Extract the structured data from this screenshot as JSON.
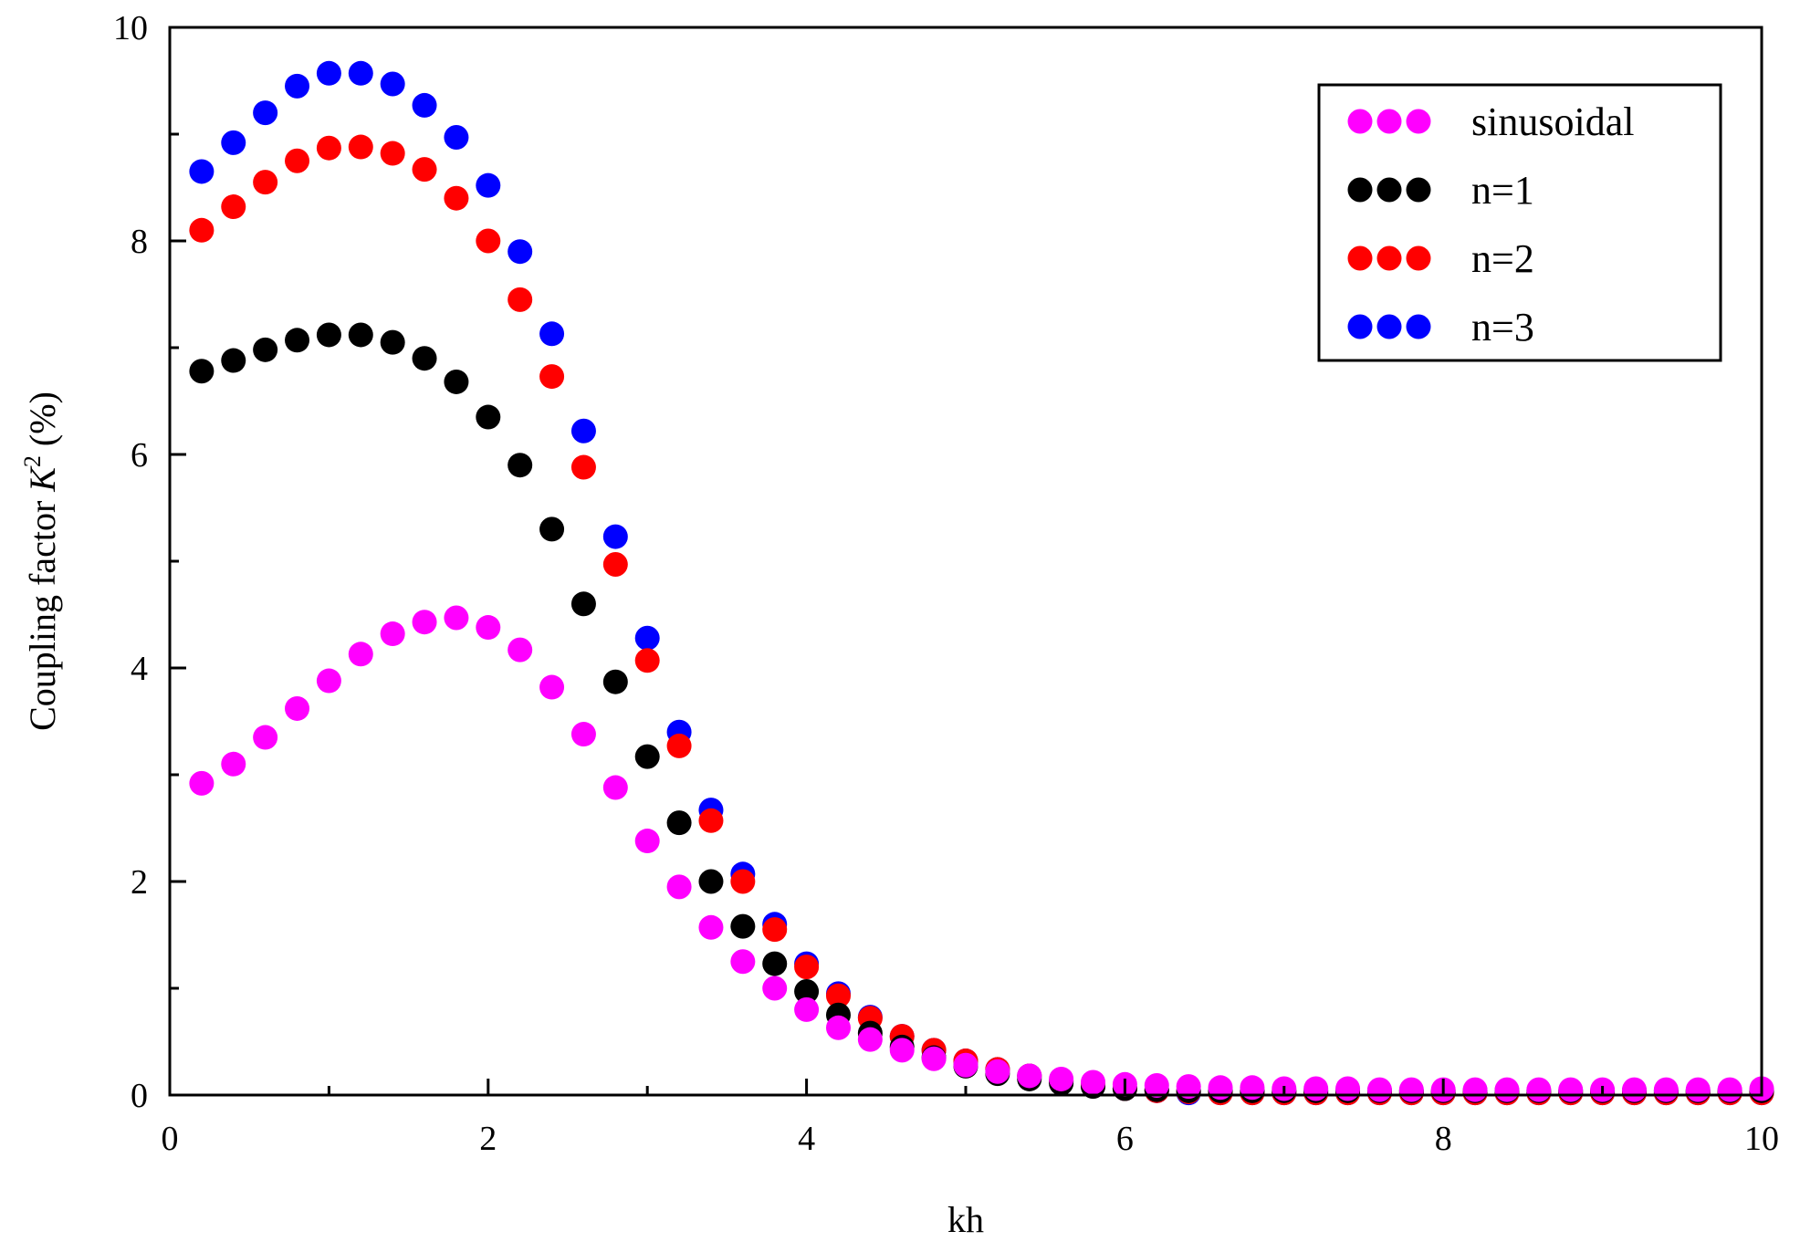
{
  "chart_data": {
    "type": "scatter",
    "xlabel": "kh",
    "ylabel_prefix": "Coupling factor ",
    "ylabel_symbol": "K",
    "ylabel_sup": "2",
    "ylabel_suffix": " (%)",
    "xlim": [
      0,
      10
    ],
    "ylim": [
      0,
      10
    ],
    "xticks": [
      0,
      2,
      4,
      6,
      8,
      10
    ],
    "yticks": [
      0,
      2,
      4,
      6,
      8,
      10
    ],
    "grid": false,
    "legend_position": "top-right",
    "x": [
      0.2,
      0.4,
      0.6,
      0.8,
      1.0,
      1.2,
      1.4,
      1.6,
      1.8,
      2.0,
      2.2,
      2.4,
      2.6,
      2.8,
      3.0,
      3.2,
      3.4,
      3.6,
      3.8,
      4.0,
      4.2,
      4.4,
      4.6,
      4.8,
      5.0,
      5.2,
      5.4,
      5.6,
      5.8,
      6.0,
      6.2,
      6.4,
      6.6,
      6.8,
      7.0,
      7.2,
      7.4,
      7.6,
      7.8,
      8.0,
      8.2,
      8.4,
      8.6,
      8.8,
      9.0,
      9.2,
      9.4,
      9.6,
      9.8,
      10.0
    ],
    "series": [
      {
        "name": "n=3",
        "color": "#0000ff",
        "values": [
          8.65,
          8.92,
          9.2,
          9.45,
          9.57,
          9.57,
          9.47,
          9.27,
          8.97,
          8.52,
          7.9,
          7.13,
          6.22,
          5.23,
          4.28,
          3.4,
          2.67,
          2.07,
          1.6,
          1.23,
          0.95,
          0.73,
          0.55,
          0.42,
          0.32,
          0.24,
          0.18,
          0.13,
          0.09,
          0.06,
          0.04,
          0.02,
          0.02,
          0.02,
          0.02,
          0.02,
          0.02,
          0.02,
          0.02,
          0.02,
          0.02,
          0.02,
          0.02,
          0.02,
          0.02,
          0.02,
          0.02,
          0.02,
          0.02,
          0.02
        ]
      },
      {
        "name": "n=2",
        "color": "#ff0000",
        "values": [
          8.1,
          8.32,
          8.55,
          8.75,
          8.87,
          8.88,
          8.82,
          8.67,
          8.4,
          8.0,
          7.45,
          6.73,
          5.88,
          4.97,
          4.07,
          3.27,
          2.57,
          2.0,
          1.55,
          1.2,
          0.93,
          0.72,
          0.55,
          0.42,
          0.32,
          0.24,
          0.18,
          0.13,
          0.09,
          0.06,
          0.04,
          0.03,
          0.02,
          0.02,
          0.02,
          0.02,
          0.02,
          0.02,
          0.02,
          0.02,
          0.02,
          0.02,
          0.02,
          0.02,
          0.02,
          0.02,
          0.02,
          0.02,
          0.02,
          0.02
        ]
      },
      {
        "name": "n=1",
        "color": "#000000",
        "values": [
          6.78,
          6.88,
          6.98,
          7.07,
          7.12,
          7.12,
          7.05,
          6.9,
          6.68,
          6.35,
          5.9,
          5.3,
          4.6,
          3.87,
          3.17,
          2.55,
          2.0,
          1.58,
          1.23,
          0.97,
          0.75,
          0.58,
          0.45,
          0.35,
          0.27,
          0.2,
          0.15,
          0.11,
          0.08,
          0.06,
          0.05,
          0.04,
          0.04,
          0.04,
          0.04,
          0.04,
          0.04,
          0.04,
          0.04,
          0.04,
          0.04,
          0.04,
          0.04,
          0.04,
          0.04,
          0.04,
          0.04,
          0.04,
          0.04,
          0.04
        ]
      },
      {
        "name": "sinusoidal",
        "color": "#ff00ff",
        "values": [
          2.92,
          3.1,
          3.35,
          3.62,
          3.88,
          4.13,
          4.32,
          4.43,
          4.47,
          4.38,
          4.17,
          3.82,
          3.38,
          2.88,
          2.38,
          1.95,
          1.57,
          1.25,
          1.0,
          0.8,
          0.63,
          0.52,
          0.42,
          0.34,
          0.28,
          0.22,
          0.18,
          0.15,
          0.12,
          0.1,
          0.09,
          0.08,
          0.07,
          0.07,
          0.06,
          0.06,
          0.06,
          0.05,
          0.05,
          0.05,
          0.05,
          0.05,
          0.05,
          0.05,
          0.05,
          0.05,
          0.05,
          0.05,
          0.05,
          0.06
        ]
      }
    ],
    "legend_order": [
      "sinusoidal",
      "n=1",
      "n=2",
      "n=3"
    ]
  }
}
